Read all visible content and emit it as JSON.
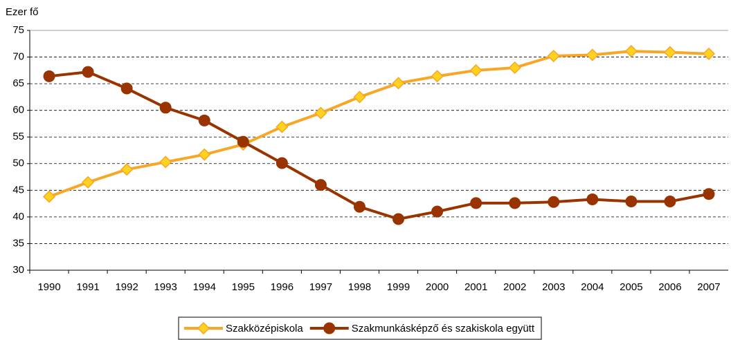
{
  "chart_data": {
    "type": "line",
    "y_label": "Ezer fő",
    "categories": [
      "1990",
      "1991",
      "1992",
      "1993",
      "1994",
      "1995",
      "1996",
      "1997",
      "1998",
      "1999",
      "2000",
      "2001",
      "2002",
      "2003",
      "2004",
      "2005",
      "2006",
      "2007"
    ],
    "series": [
      {
        "name": "Szakközépiskola",
        "color": "#f7a626",
        "marker": "diamond",
        "marker_fill": "#ffd21f",
        "values": [
          43.8,
          46.5,
          48.9,
          50.3,
          51.7,
          53.6,
          56.9,
          59.5,
          62.5,
          65.1,
          66.4,
          67.5,
          68.0,
          70.2,
          70.4,
          71.1,
          70.9,
          70.6
        ]
      },
      {
        "name": "Szakmunkásképző és szakiskola együtt",
        "color": "#993300",
        "marker": "circle",
        "marker_fill": "#993300",
        "values": [
          66.4,
          67.2,
          64.1,
          60.5,
          58.1,
          54.1,
          50.1,
          46.0,
          41.9,
          39.6,
          41.0,
          42.6,
          42.6,
          42.8,
          43.3,
          42.9,
          42.9,
          44.3
        ]
      }
    ],
    "ylim": [
      30,
      75
    ],
    "yticks": [
      30,
      35,
      40,
      45,
      50,
      55,
      60,
      65,
      70,
      75
    ],
    "grid": true,
    "legend": "bottom"
  }
}
